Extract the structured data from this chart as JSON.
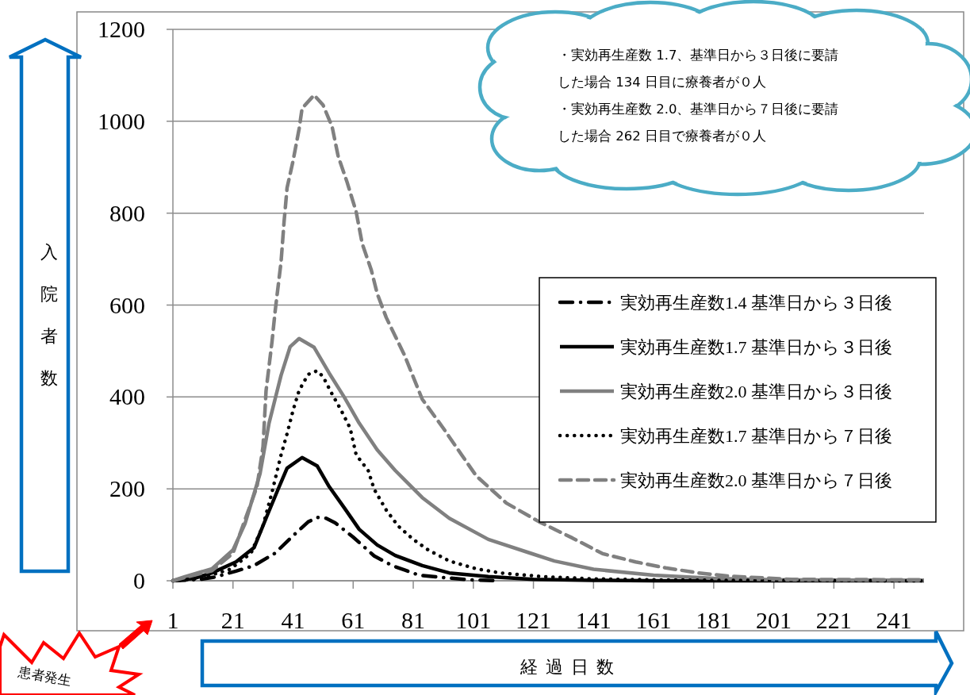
{
  "chart_data": {
    "type": "line",
    "xlabel": "経過日数",
    "ylabel": "入院者数",
    "xlim": [
      1,
      251
    ],
    "xticks": [
      1,
      21,
      41,
      61,
      81,
      101,
      121,
      141,
      161,
      181,
      201,
      221,
      241
    ],
    "ylim": [
      0,
      1200
    ],
    "yticks": [
      0,
      200,
      400,
      600,
      800,
      1000,
      1200
    ],
    "grid": "y",
    "legend": "right",
    "series": [
      {
        "name": "実効再生産数1.4 基準日から３日後",
        "color": "#000000",
        "line_style": "dashdot",
        "x": [
          1,
          10,
          15,
          22,
          28,
          35,
          41,
          46,
          49,
          52,
          55,
          61,
          68,
          74,
          83,
          91,
          100,
          110
        ],
        "values": [
          0,
          3,
          8,
          21,
          33,
          60,
          98,
          128,
          138,
          136,
          126,
          95,
          54,
          33,
          12,
          7,
          2,
          0
        ]
      },
      {
        "name": "実効再生産数1.7 基準日から３日後",
        "color": "#000000",
        "line_style": "solid",
        "x": [
          1,
          8,
          14,
          22,
          28,
          32,
          36,
          39,
          44,
          49,
          53,
          58,
          63,
          69,
          75,
          84,
          93,
          106,
          121,
          141,
          161,
          201,
          251
        ],
        "values": [
          0,
          5,
          17,
          41,
          72,
          136,
          199,
          245,
          268,
          250,
          205,
          159,
          112,
          78,
          55,
          33,
          17,
          9,
          3,
          1,
          0,
          0,
          0
        ]
      },
      {
        "name": "実効再生産数2.0 基準日から３日後",
        "color": "#808080",
        "line_style": "solid",
        "x": [
          1,
          5,
          14,
          21,
          25,
          30,
          33,
          37,
          40,
          43,
          48,
          53,
          58,
          63,
          69,
          75,
          84,
          93,
          106,
          120,
          128,
          141,
          161,
          181,
          201,
          251
        ],
        "values": [
          0,
          9,
          26,
          67,
          124,
          233,
          343,
          447,
          509,
          527,
          508,
          452,
          400,
          343,
          285,
          240,
          181,
          136,
          90,
          60,
          43,
          25,
          12,
          5,
          2,
          1
        ]
      },
      {
        "name": "実効再生産数1.7 基準日から７日後",
        "color": "#000000",
        "line_style": "dotted",
        "x": [
          1,
          10,
          20,
          27,
          31,
          34,
          37,
          39,
          41,
          43,
          46,
          49,
          51,
          54,
          57,
          60,
          62,
          66,
          68,
          72,
          76,
          81,
          86,
          93,
          102,
          110,
          124,
          141,
          161,
          181,
          251
        ],
        "values": [
          0,
          5,
          25,
          60,
          120,
          193,
          274,
          320,
          371,
          414,
          449,
          457,
          444,
          406,
          371,
          332,
          274,
          240,
          199,
          154,
          119,
          90,
          67,
          43,
          26,
          17,
          9,
          4,
          2,
          1,
          0
        ]
      },
      {
        "name": "実効再生産数2.0 基準日から７日後",
        "color": "#808080",
        "line_style": "dashed",
        "x": [
          1,
          5,
          14,
          21,
          29,
          31,
          32,
          34,
          35,
          37,
          38,
          39,
          41,
          43,
          44,
          48,
          51,
          54,
          56,
          59,
          62,
          64,
          67,
          69,
          72,
          78,
          84,
          91,
          97,
          102,
          112,
          123,
          134,
          144,
          155,
          165,
          176,
          186,
          207,
          251
        ],
        "values": [
          0,
          7,
          22,
          60,
          205,
          292,
          413,
          521,
          585,
          694,
          781,
          855,
          914,
          983,
          1028,
          1057,
          1035,
          988,
          924,
          867,
          803,
          734,
          677,
          625,
          573,
          492,
          395,
          332,
          275,
          228,
          169,
          128,
          93,
          59,
          41,
          28,
          17,
          10,
          3,
          2
        ]
      }
    ],
    "annotations": [
      "・実効再生産数 1.7、基準日から３日後に要請した場合 134 日目に療養者が０人",
      "・実効再生産数 2.0、基準日から７日後に要請した場合 262 日目で療養者が０人",
      "患者発生"
    ]
  }
}
